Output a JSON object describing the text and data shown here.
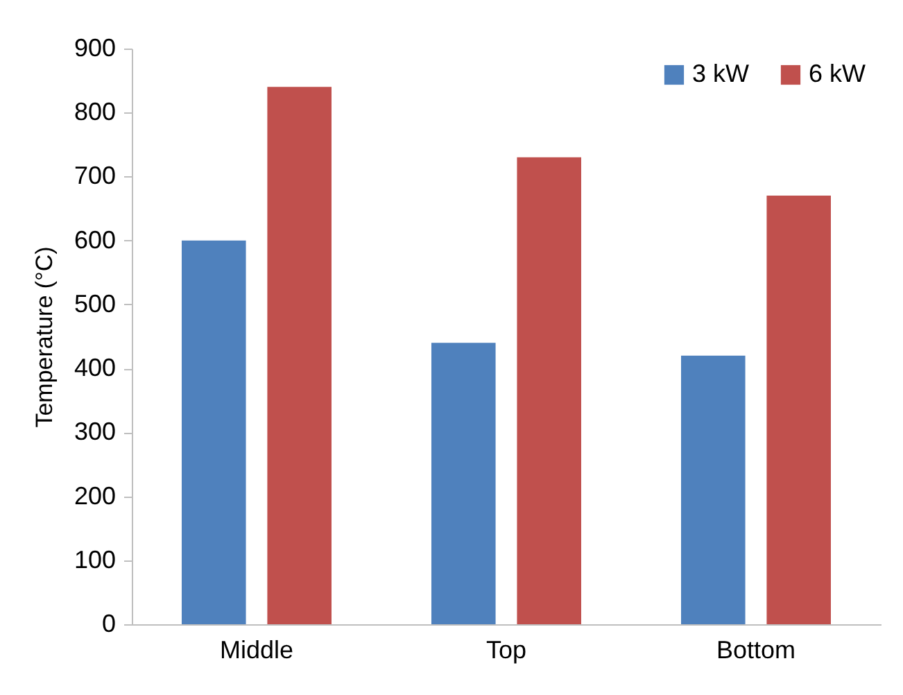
{
  "chart_data": {
    "type": "bar",
    "categories": [
      "Middle",
      "Top",
      "Bottom"
    ],
    "series": [
      {
        "name": "3 kW",
        "color": "#4f81bd",
        "values": [
          600,
          440,
          420
        ]
      },
      {
        "name": "6 kW",
        "color": "#c0504d",
        "values": [
          840,
          730,
          670
        ]
      }
    ],
    "ylabel": "Temperature (°C)",
    "ylim": [
      0,
      900
    ],
    "yticks": [
      0,
      100,
      200,
      300,
      400,
      500,
      600,
      700,
      800,
      900
    ],
    "legend": "top right"
  }
}
